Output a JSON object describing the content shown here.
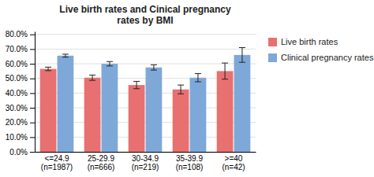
{
  "chart_data": {
    "type": "bar",
    "title": "Live birth rates and Cinical pregnancy\nrates by BMI",
    "categories": [
      "<=24.9\n(n=1987)",
      "25-29.9\n(n=666)",
      "30-34.9\n(n=219)",
      "35-39.9\n(n=108)",
      ">=40\n(n=42)"
    ],
    "series": [
      {
        "name": "Live birth rates",
        "color": "#e87070",
        "values": [
          0.565,
          0.505,
          0.455,
          0.425,
          0.55
        ],
        "errors": [
          0.012,
          0.018,
          0.025,
          0.03,
          0.055
        ]
      },
      {
        "name": "Clinical pregnancy rates",
        "color": "#7ea8d8",
        "values": [
          0.655,
          0.6,
          0.575,
          0.505,
          0.66
        ],
        "errors": [
          0.01,
          0.015,
          0.018,
          0.028,
          0.05
        ]
      }
    ],
    "ylim": [
      0.0,
      0.82
    ],
    "yticks": [
      {
        "value": 0.0,
        "label": "0.0%"
      },
      {
        "value": 0.1,
        "label": "10.0%"
      },
      {
        "value": 0.2,
        "label": "20.0%"
      },
      {
        "value": 0.3,
        "label": "30.0%"
      },
      {
        "value": 0.4,
        "label": "40.0%"
      },
      {
        "value": 0.5,
        "label": "50.0%"
      },
      {
        "value": 0.6,
        "label": "60.0%"
      },
      {
        "value": 0.7,
        "label": "70.0%"
      },
      {
        "value": 0.8,
        "label": "80.0%"
      }
    ],
    "grid": true,
    "legend": "right"
  }
}
